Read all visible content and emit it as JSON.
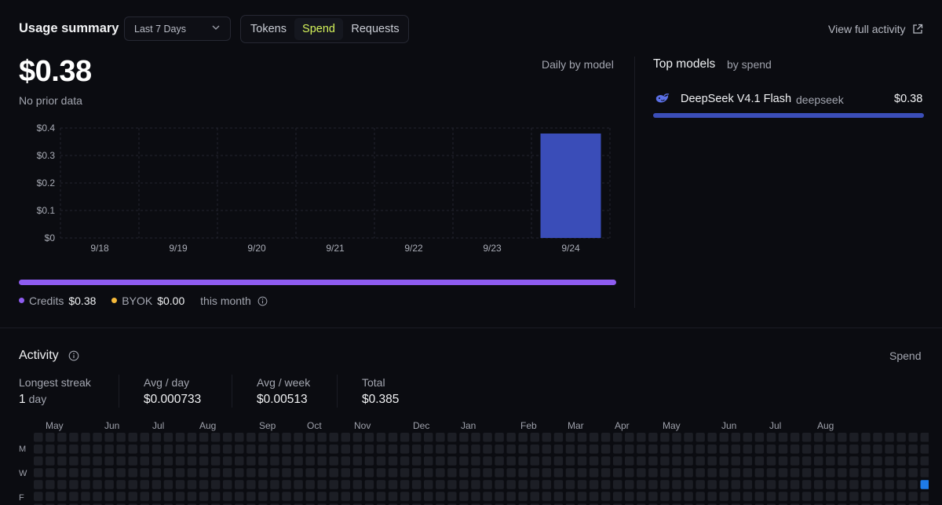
{
  "header": {
    "title": "Usage summary",
    "range": "Last 7 Days",
    "tabs": [
      {
        "label": "Tokens",
        "active": false
      },
      {
        "label": "Spend",
        "active": true
      },
      {
        "label": "Requests",
        "active": false
      }
    ],
    "view_full": "View full activity"
  },
  "summary": {
    "amount": "$0.38",
    "note": "No prior data",
    "grouping": "Daily by model"
  },
  "chart_data": {
    "type": "bar",
    "categories": [
      "9/18",
      "9/19",
      "9/20",
      "9/21",
      "9/22",
      "9/23",
      "9/24"
    ],
    "values": [
      0,
      0,
      0,
      0,
      0,
      0,
      0.38
    ],
    "yticks": [
      "$0",
      "$0.1",
      "$0.2",
      "$0.3",
      "$0.4"
    ],
    "ylim": [
      0,
      0.4
    ],
    "grid": true,
    "bar_color": "#3a4db8"
  },
  "legend": {
    "credits_label": "Credits",
    "credits_value": "$0.38",
    "byok_label": "BYOK",
    "byok_value": "$0.00",
    "period": "this month",
    "credits_color": "#8e5cf0",
    "byok_color": "#f5b93a"
  },
  "top_models": {
    "title": "Top models",
    "subtitle": "by spend",
    "items": [
      {
        "name": "DeepSeek V4.1 Flash",
        "provider": "deepseek",
        "cost": "$0.38",
        "icon": "deepseek-whale-icon"
      }
    ]
  },
  "activity": {
    "title": "Activity",
    "metric": "Spend",
    "stats": {
      "streak_label": "Longest streak",
      "streak_value": "1",
      "streak_unit": "day",
      "avg_day_label": "Avg / day",
      "avg_day_value": "$0.000733",
      "avg_week_label": "Avg / week",
      "avg_week_value": "$0.00513",
      "total_label": "Total",
      "total_value": "$0.385"
    },
    "months": [
      "May",
      "Jun",
      "Jul",
      "Aug",
      "Sep",
      "Oct",
      "Nov",
      "Dec",
      "Jan",
      "Feb",
      "Mar",
      "Apr",
      "May",
      "Jun",
      "Jul",
      "Aug"
    ],
    "weekdays": [
      "M",
      "W",
      "F"
    ],
    "active_cell_color": "#1e7be8",
    "empty_cell_color": "#1c1e25"
  }
}
